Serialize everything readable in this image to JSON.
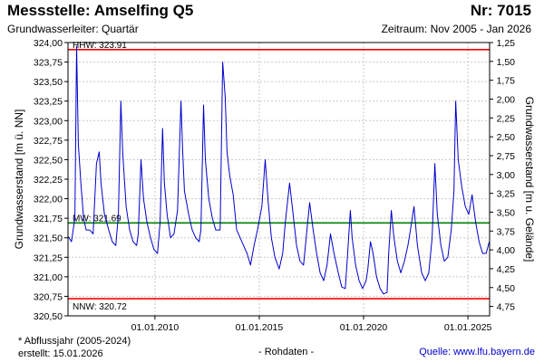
{
  "header": {
    "title": "Messstelle: Amselfing Q5",
    "nr": "Nr: 7015",
    "aquifer": "Grundwasserleiter: Quartär",
    "period": "Zeitraum: Nov 2005 - Jan 2026"
  },
  "footer": {
    "note": "* Abflussjahr (2005-2024)",
    "created": "erstellt:  15.01.2026",
    "raw": "- Rohdaten -",
    "source": "Quelle: www.lfu.bayern.de"
  },
  "colors": {
    "series": "#0000cc",
    "extreme_lines": "#ff0000",
    "mean_line": "#008000",
    "grid": "#c8c8c8"
  },
  "chart_data": {
    "type": "line",
    "ylabel_left": "Grundwasserstand [m ü. NN]",
    "ylabel_right": "Grundwasserstand [m u. Gelände]",
    "ylim": [
      320.5,
      324.0
    ],
    "right_ylim": [
      4.875,
      1.25
    ],
    "xlim": [
      "2005-11-01",
      "2026-01-15"
    ],
    "grid": true,
    "left_ticks": [
      "324,00",
      "323,75",
      "323,50",
      "323,25",
      "323,00",
      "322,75",
      "322,50",
      "322,25",
      "322,00",
      "321,75",
      "321,50",
      "321,25",
      "321,00",
      "320,75",
      "320,50"
    ],
    "right_ticks": [
      "1,25",
      "1,50",
      "1,75",
      "2,00",
      "2,25",
      "2,50",
      "2,75",
      "3,00",
      "3,25",
      "3,50",
      "3,75",
      "4,00",
      "4,25",
      "4,50",
      "4,75"
    ],
    "x_tick_labels": [
      "01.01.2010",
      "01.01.2015",
      "01.01.2020",
      "01.01.2025"
    ],
    "x_ticks": [
      "2010-01-01",
      "2015-01-01",
      "2020-01-01",
      "2025-01-01"
    ],
    "reference_lines": [
      {
        "label": "HHW: 323.91",
        "value": 323.91,
        "kind": "extreme"
      },
      {
        "label": "MW: 321.69",
        "value": 321.69,
        "kind": "mean"
      },
      {
        "label": "NNW: 320.72",
        "value": 320.72,
        "kind": "extreme"
      }
    ],
    "series": [
      {
        "x": [
          "2005-11-01",
          "2006-01-01",
          "2006-03-01",
          "2006-04-01",
          "2006-05-01",
          "2006-06-15",
          "2006-08-01",
          "2006-09-15",
          "2006-11-15",
          "2007-01-15",
          "2007-03-15",
          "2007-05-01",
          "2007-06-01",
          "2007-08-01",
          "2007-10-15",
          "2007-12-15",
          "2008-02-15",
          "2008-04-01",
          "2008-05-15",
          "2008-06-15",
          "2008-08-15",
          "2008-10-15",
          "2008-12-15",
          "2009-02-15",
          "2009-03-15",
          "2009-05-01",
          "2009-06-15",
          "2009-08-15",
          "2009-10-15",
          "2009-12-15",
          "2010-02-15",
          "2010-04-01",
          "2010-05-15",
          "2010-06-15",
          "2010-08-01",
          "2010-10-01",
          "2010-12-01",
          "2011-02-01",
          "2011-04-01",
          "2011-05-01",
          "2011-06-01",
          "2011-08-15",
          "2011-10-15",
          "2011-12-15",
          "2012-02-15",
          "2012-03-15",
          "2012-05-01",
          "2012-06-01",
          "2012-08-01",
          "2012-10-01",
          "2012-12-01",
          "2013-02-15",
          "2013-04-01",
          "2013-05-15",
          "2013-06-15",
          "2013-08-01",
          "2013-10-01",
          "2013-12-01",
          "2014-02-01",
          "2014-04-01",
          "2014-06-01",
          "2014-08-01",
          "2014-10-01",
          "2014-12-01",
          "2015-02-15",
          "2015-04-15",
          "2015-06-01",
          "2015-08-01",
          "2015-10-01",
          "2015-12-15",
          "2016-02-15",
          "2016-04-01",
          "2016-06-15",
          "2016-08-15",
          "2016-10-15",
          "2016-12-15",
          "2017-02-15",
          "2017-04-01",
          "2017-06-01",
          "2017-08-01",
          "2017-10-01",
          "2017-12-01",
          "2018-02-01",
          "2018-04-01",
          "2018-06-01",
          "2018-08-01",
          "2018-10-15",
          "2018-12-15",
          "2019-02-15",
          "2019-03-20",
          "2019-05-15",
          "2019-06-15",
          "2019-08-15",
          "2019-10-15",
          "2019-12-15",
          "2020-02-15",
          "2020-03-15",
          "2020-05-01",
          "2020-06-15",
          "2020-08-15",
          "2020-10-15",
          "2020-12-15",
          "2021-02-15",
          "2021-03-15",
          "2021-05-01",
          "2021-06-15",
          "2021-08-15",
          "2021-10-15",
          "2021-12-15",
          "2022-02-15",
          "2022-04-01",
          "2022-06-01",
          "2022-08-01",
          "2022-10-15",
          "2022-12-15",
          "2023-02-15",
          "2023-04-15",
          "2023-06-01",
          "2023-07-15",
          "2023-09-15",
          "2023-11-15",
          "2024-01-15",
          "2024-03-15",
          "2024-05-01",
          "2024-06-01",
          "2024-07-15",
          "2024-09-15",
          "2024-11-15",
          "2025-01-15",
          "2025-03-15",
          "2025-05-15",
          "2025-07-15",
          "2025-09-15",
          "2025-11-15",
          "2026-01-10"
        ],
        "y": [
          321.52,
          321.45,
          321.75,
          323.95,
          322.7,
          322.2,
          321.75,
          321.6,
          321.6,
          321.55,
          322.45,
          322.6,
          322.2,
          321.8,
          321.6,
          321.45,
          321.4,
          321.8,
          323.25,
          322.6,
          321.9,
          321.6,
          321.45,
          321.4,
          321.55,
          322.5,
          322.0,
          321.7,
          321.5,
          321.35,
          321.3,
          321.7,
          322.9,
          322.2,
          321.8,
          321.5,
          321.55,
          321.85,
          323.25,
          322.6,
          322.1,
          321.8,
          321.6,
          321.5,
          321.45,
          321.6,
          323.2,
          322.5,
          322.0,
          321.75,
          321.6,
          321.6,
          323.75,
          323.3,
          322.6,
          322.3,
          322.05,
          321.6,
          321.5,
          321.4,
          321.3,
          321.15,
          321.4,
          321.6,
          321.9,
          322.5,
          322.0,
          321.5,
          321.25,
          321.1,
          321.3,
          321.7,
          322.2,
          321.8,
          321.4,
          321.2,
          321.15,
          321.5,
          321.95,
          321.6,
          321.3,
          321.05,
          320.95,
          321.15,
          321.55,
          321.3,
          321.05,
          320.87,
          320.85,
          321.2,
          321.85,
          321.5,
          321.15,
          320.95,
          320.85,
          320.95,
          321.1,
          321.45,
          321.3,
          321.0,
          320.85,
          320.78,
          320.8,
          321.3,
          321.85,
          321.5,
          321.2,
          321.05,
          321.2,
          321.4,
          321.6,
          321.9,
          321.4,
          321.05,
          320.95,
          321.05,
          321.5,
          322.45,
          321.8,
          321.4,
          321.2,
          321.25,
          321.6,
          322.1,
          323.25,
          322.5,
          322.15,
          321.9,
          321.8,
          322.05,
          321.7,
          321.45,
          321.3,
          321.3,
          321.45
        ]
      }
    ]
  }
}
